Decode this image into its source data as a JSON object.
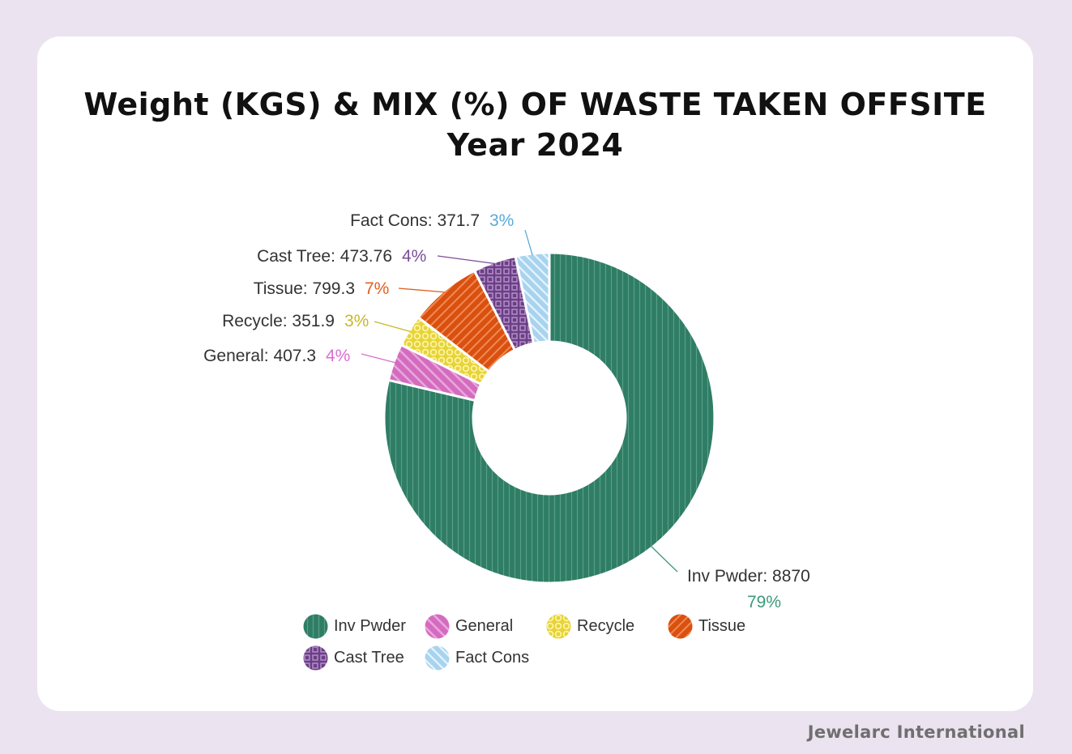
{
  "chart_data": {
    "type": "pie",
    "title": "Weight (KGS) & MIX (%) OF WASTE TAKEN OFFSITE",
    "subtitle": "Year 2024",
    "categories": [
      "Inv Pwder",
      "General",
      "Recycle",
      "Tissue",
      "Cast Tree",
      "Fact Cons"
    ],
    "values": [
      8870,
      407.3,
      351.9,
      799.3,
      473.76,
      371.7
    ],
    "value_labels": [
      "8870",
      "407.3",
      "351.9",
      "799.3",
      "473.76",
      "371.7"
    ],
    "percent_labels": [
      "79%",
      "4%",
      "3%",
      "7%",
      "4%",
      "3%"
    ],
    "colors": [
      "#2e7d64",
      "#d46bbf",
      "#e6d33a",
      "#d9500f",
      "#6b3f85",
      "#a8d3ef"
    ],
    "percent_colors": [
      "#3d9a7c",
      "#d96fd0",
      "#c9b82c",
      "#e0601e",
      "#7a4f96",
      "#5aaad6"
    ],
    "legend_position": "bottom",
    "donut": true
  },
  "footer": {
    "brand": "Jewelarc International"
  }
}
